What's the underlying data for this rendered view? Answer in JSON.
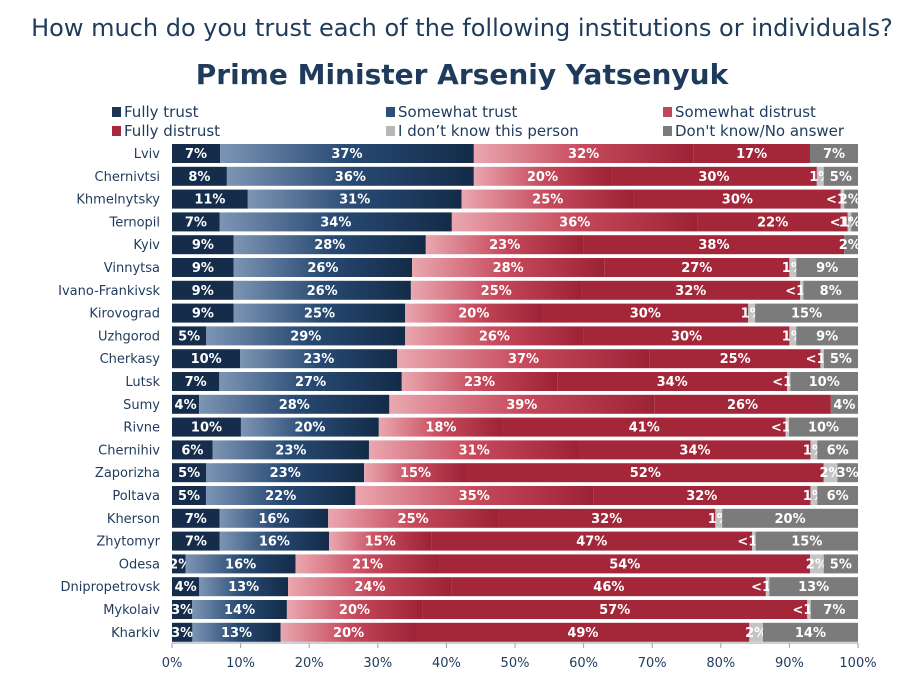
{
  "question": "How much do you trust each of the following institutions or individuals?",
  "chart_data": {
    "type": "bar",
    "orientation": "horizontal",
    "stacked": true,
    "title": "Prime Minister Arseniy Yatsenyuk",
    "xlim": [
      0,
      100
    ],
    "xticks": [
      "0%",
      "10%",
      "20%",
      "30%",
      "40%",
      "50%",
      "60%",
      "70%",
      "80%",
      "90%",
      "100%"
    ],
    "legend_position": "top",
    "categories": [
      "Lviv",
      "Chernivtsi",
      "Khmelnytsky",
      "Ternopil",
      "Kyiv",
      "Vinnytsa",
      "Ivano-Frankivsk",
      "Kirovograd",
      "Uzhgorod",
      "Cherkasy",
      "Lutsk",
      "Sumy",
      "Rivne",
      "Chernihiv",
      "Zaporizha",
      "Poltava",
      "Kherson",
      "Zhytomyr",
      "Odesa",
      "Dnipropetrovsk",
      "Mykolaiv",
      "Kharkiv"
    ],
    "series": [
      {
        "name": "Fully trust",
        "color": "#1b3553",
        "values": [
          7,
          8,
          11,
          7,
          9,
          9,
          9,
          9,
          5,
          10,
          7,
          4,
          10,
          6,
          5,
          5,
          7,
          7,
          2,
          4,
          3,
          3
        ],
        "labels": [
          "7%",
          "8%",
          "11%",
          "7%",
          "9%",
          "9%",
          "9%",
          "9%",
          "5%",
          "10%",
          "7%",
          "4%",
          "10%",
          "6%",
          "5%",
          "5%",
          "7%",
          "7%",
          "2%",
          "4%",
          "3%",
          "3%"
        ]
      },
      {
        "name": "Somewhat trust",
        "color": "#2d4f78",
        "values": [
          37,
          36,
          31,
          34,
          28,
          26,
          26,
          25,
          29,
          23,
          27,
          28,
          20,
          23,
          23,
          22,
          16,
          16,
          16,
          13,
          14,
          13
        ],
        "labels": [
          "37%",
          "36%",
          "31%",
          "34%",
          "28%",
          "26%",
          "26%",
          "25%",
          "29%",
          "23%",
          "27%",
          "28%",
          "20%",
          "23%",
          "23%",
          "22%",
          "16%",
          "16%",
          "16%",
          "13%",
          "14%",
          "13%"
        ]
      },
      {
        "name": "Somewhat distrust",
        "color": "#c0475a",
        "values": [
          32,
          20,
          25,
          36,
          23,
          28,
          25,
          20,
          26,
          37,
          23,
          39,
          18,
          31,
          15,
          35,
          25,
          15,
          21,
          24,
          20,
          20
        ],
        "labels": [
          "32%",
          "20%",
          "25%",
          "36%",
          "23%",
          "28%",
          "25%",
          "20%",
          "26%",
          "37%",
          "23%",
          "39%",
          "18%",
          "31%",
          "15%",
          "35%",
          "25%",
          "15%",
          "21%",
          "24%",
          "20%",
          "20%"
        ]
      },
      {
        "name": "Fully distrust",
        "color": "#a52a3c",
        "values": [
          17,
          30,
          30,
          22,
          38,
          27,
          32,
          30,
          30,
          25,
          34,
          26,
          41,
          34,
          52,
          32,
          32,
          47,
          54,
          46,
          57,
          49
        ],
        "labels": [
          "17%",
          "30%",
          "30%",
          "22%",
          "38%",
          "27%",
          "32%",
          "30%",
          "30%",
          "25%",
          "34%",
          "26%",
          "41%",
          "34%",
          "52%",
          "32%",
          "32%",
          "47%",
          "54%",
          "46%",
          "57%",
          "49%"
        ]
      },
      {
        "name": "I don’t know this person",
        "color": "#b7b7b7",
        "values": [
          0,
          1,
          0.5,
          0.5,
          0,
          1,
          0.5,
          1,
          1,
          0.5,
          0.5,
          0,
          0.5,
          1,
          2,
          1,
          1,
          0.5,
          2,
          0.5,
          0.5,
          2
        ],
        "labels": [
          "",
          "1%",
          "<1%",
          "<1%",
          "",
          "1%",
          "<1%",
          "1%",
          "1%",
          "<1%",
          "<1%",
          "",
          "<1%",
          "1%",
          "2%",
          "1%",
          "1%",
          "<1%",
          "2%",
          "<1%",
          "<1%",
          "2%"
        ]
      },
      {
        "name": "Don't know/No answer",
        "color": "#7b7b7b",
        "values": [
          7,
          5,
          2,
          1,
          2,
          9,
          8,
          15,
          9,
          5,
          10,
          4,
          10,
          6,
          3,
          6,
          20,
          15,
          5,
          13,
          7,
          14
        ],
        "labels": [
          "7%",
          "5%",
          "2%",
          "1%",
          "2%",
          "9%",
          "8%",
          "15%",
          "9%",
          "5%",
          "10%",
          "4%",
          "10%",
          "6%",
          "3%",
          "6%",
          "20%",
          "15%",
          "5%",
          "13%",
          "7%",
          "14%"
        ]
      }
    ]
  }
}
